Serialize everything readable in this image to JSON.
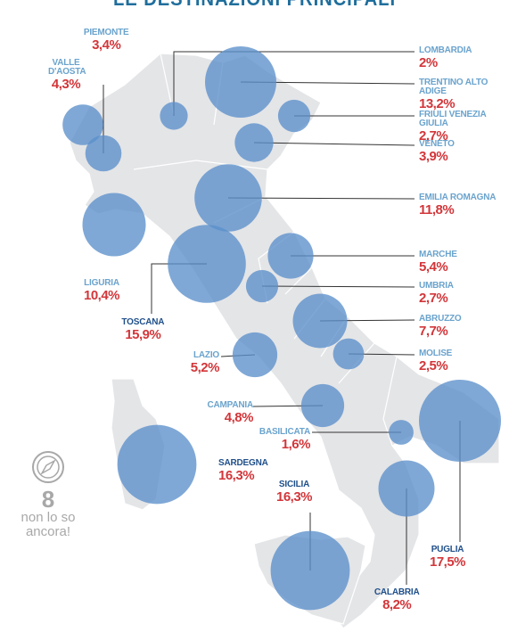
{
  "chart_data": {
    "type": "map-bubble",
    "title": "LE DESTINAZIONI PRINCIPALI",
    "regions": [
      {
        "name": "PIEMONTE",
        "value": 3.4,
        "label": "3,4%"
      },
      {
        "name": "VALLE D'AOSTA",
        "value": 4.3,
        "label": "4,3%"
      },
      {
        "name": "LOMBARDIA",
        "value": 2,
        "label": "2%"
      },
      {
        "name": "TRENTINO ALTO ADIGE",
        "value": 13.2,
        "label": "13,2%"
      },
      {
        "name": "FRIULI VENEZIA GIULIA",
        "value": 2.7,
        "label": "2,7%"
      },
      {
        "name": "VENETO",
        "value": 3.9,
        "label": "3,9%"
      },
      {
        "name": "EMILIA ROMAGNA",
        "value": 11.8,
        "label": "11,8%"
      },
      {
        "name": "LIGURIA",
        "value": 10.4,
        "label": "10,4%"
      },
      {
        "name": "TOSCANA",
        "value": 15.9,
        "label": "15,9%"
      },
      {
        "name": "MARCHE",
        "value": 5.4,
        "label": "5,4%"
      },
      {
        "name": "UMBRIA",
        "value": 2.7,
        "label": "2,7%"
      },
      {
        "name": "ABRUZZO",
        "value": 7.7,
        "label": "7,7%"
      },
      {
        "name": "LAZIO",
        "value": 5.2,
        "label": "5,2%"
      },
      {
        "name": "MOLISE",
        "value": 2.5,
        "label": "2,5%"
      },
      {
        "name": "CAMPANIA",
        "value": 4.8,
        "label": "4,8%"
      },
      {
        "name": "BASILICATA",
        "value": 1.6,
        "label": "1,6%"
      },
      {
        "name": "SARDEGNA",
        "value": 16.3,
        "label": "16,3%"
      },
      {
        "name": "SICILIA",
        "value": 16.3,
        "label": "16,3%"
      },
      {
        "name": "PUGLIA",
        "value": 17.5,
        "label": "17,5%"
      },
      {
        "name": "CALABRIA",
        "value": 8.2,
        "label": "8,2%"
      }
    ],
    "unknown": {
      "value": "8",
      "text": "non lo so ancora!",
      "icon": "compass-icon"
    },
    "colors": {
      "bubble": "#5b8fcb",
      "region_name": "#6aa3cd",
      "percent": "#d2363a",
      "map": "#e3e4e6",
      "unknown": "#a8a8a8"
    }
  }
}
